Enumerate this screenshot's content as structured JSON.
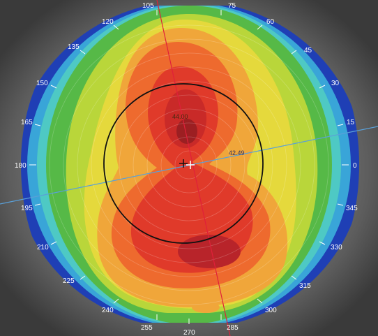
{
  "axis_degrees": [
    "105",
    "75",
    "120",
    "60",
    "135",
    "45",
    "150",
    "30",
    "165",
    "15",
    "180",
    "0",
    "195",
    "345",
    "210",
    "330",
    "225",
    "315",
    "240",
    "300",
    "255",
    "270",
    "285"
  ],
  "readings": {
    "steep_value": "44.00",
    "flat_value": "42.49"
  },
  "colors": {
    "background_gray": "#6b6b6b",
    "outer_blue": "#1f3fb5",
    "light_blue": "#39a5d8",
    "cyan": "#4ec9c4",
    "green": "#56b947",
    "yellow_green": "#b9d63a",
    "yellow": "#e5d93c",
    "orange": "#f0a63a",
    "orange_red": "#ee6a2e",
    "red": "#e03a2a",
    "dark_red": "#b8242a",
    "steep_axis": "#e0203a",
    "flat_axis": "#5aa0d8"
  }
}
